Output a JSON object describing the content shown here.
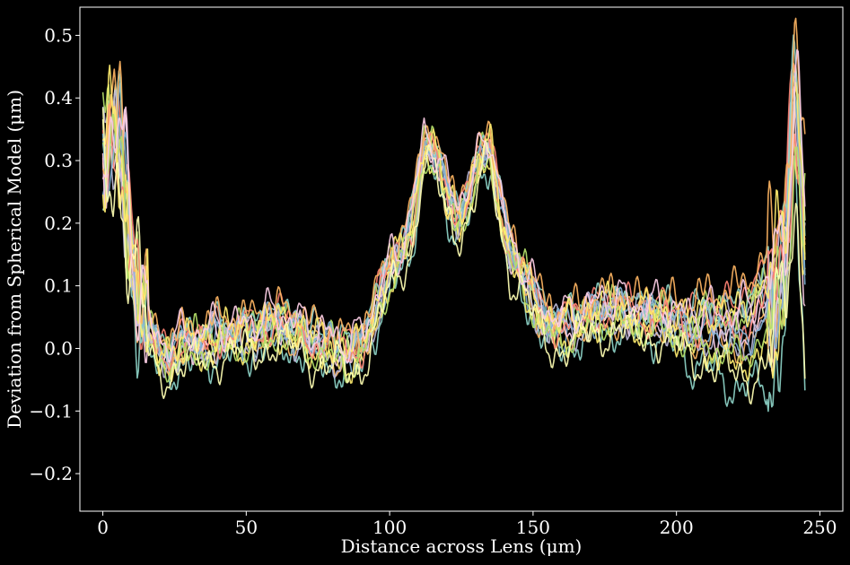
{
  "chart_data": {
    "type": "line",
    "title": "",
    "xlabel": "Distance across Lens (μm)",
    "ylabel": "Deviation from Spherical Model (μm)",
    "xlim": [
      -8,
      258
    ],
    "ylim": [
      -0.26,
      0.545
    ],
    "xticks": [
      0,
      50,
      100,
      150,
      200,
      250
    ],
    "yticks": [
      -0.2,
      -0.1,
      0.0,
      0.1,
      0.2,
      0.3,
      0.4,
      0.5
    ],
    "xtick_labels": [
      "0",
      "50",
      "100",
      "150",
      "200",
      "250"
    ],
    "ytick_labels": [
      "−0.2",
      "−0.1",
      "0.0",
      "0.1",
      "0.2",
      "0.3",
      "0.4",
      "0.5"
    ],
    "background": "#000000",
    "grid": false,
    "legend": "none",
    "profile": {
      "x": [
        0,
        2,
        4,
        6,
        8,
        10,
        12,
        14,
        16,
        18,
        20,
        25,
        30,
        35,
        40,
        45,
        50,
        55,
        60,
        65,
        70,
        75,
        80,
        85,
        90,
        95,
        100,
        104,
        108,
        112,
        116,
        120,
        124,
        128,
        132,
        135,
        138,
        142,
        146,
        150,
        155,
        160,
        165,
        170,
        175,
        180,
        185,
        190,
        195,
        200,
        205,
        210,
        215,
        220,
        225,
        230,
        234,
        237,
        239,
        241,
        243,
        245
      ],
      "y": [
        0.3,
        0.32,
        0.34,
        0.31,
        0.25,
        0.18,
        0.12,
        0.06,
        0.02,
        0.0,
        -0.01,
        0.0,
        0.0,
        0.01,
        0.02,
        0.02,
        0.02,
        0.03,
        0.04,
        0.03,
        0.02,
        0.01,
        0.0,
        -0.01,
        0.0,
        0.06,
        0.12,
        0.15,
        0.2,
        0.33,
        0.3,
        0.24,
        0.22,
        0.24,
        0.3,
        0.33,
        0.24,
        0.15,
        0.12,
        0.08,
        0.04,
        0.03,
        0.04,
        0.05,
        0.06,
        0.06,
        0.05,
        0.05,
        0.05,
        0.04,
        0.03,
        0.04,
        0.03,
        0.03,
        0.04,
        0.06,
        0.08,
        0.15,
        0.25,
        0.35,
        0.3,
        0.15
      ]
    },
    "series": [
      {
        "color": "#8dd3c7",
        "offset": -0.03,
        "trend": -0.35,
        "seed": 1
      },
      {
        "color": "#ffffb3",
        "offset": 0.0,
        "trend": 0.05,
        "seed": 2
      },
      {
        "color": "#bebada",
        "offset": 0.01,
        "trend": 0.1,
        "seed": 3
      },
      {
        "color": "#fb8072",
        "offset": 0.02,
        "trend": 0.15,
        "seed": 4
      },
      {
        "color": "#80b1d3",
        "offset": 0.0,
        "trend": 0.0,
        "seed": 5
      },
      {
        "color": "#fdb462",
        "offset": -0.01,
        "trend": -0.1,
        "seed": 6
      },
      {
        "color": "#b3de69",
        "offset": 0.01,
        "trend": 0.08,
        "seed": 7
      },
      {
        "color": "#fccde5",
        "offset": 0.0,
        "trend": -0.05,
        "seed": 8
      },
      {
        "color": "#8dd3c7",
        "offset": 0.02,
        "trend": 0.12,
        "seed": 9
      },
      {
        "color": "#ffed6f",
        "offset": -0.02,
        "trend": -0.2,
        "seed": 10
      },
      {
        "color": "#bebada",
        "offset": -0.01,
        "trend": -0.08,
        "seed": 11
      },
      {
        "color": "#fb8072",
        "offset": 0.0,
        "trend": 0.02,
        "seed": 12
      },
      {
        "color": "#80b1d3",
        "offset": 0.01,
        "trend": -0.15,
        "seed": 13
      },
      {
        "color": "#fdb462",
        "offset": 0.03,
        "trend": 0.2,
        "seed": 14
      },
      {
        "color": "#b3de69",
        "offset": -0.02,
        "trend": -0.12,
        "seed": 15
      },
      {
        "color": "#ffed6f",
        "offset": 0.01,
        "trend": 0.1,
        "seed": 16
      },
      {
        "color": "#ffffb3",
        "offset": -0.03,
        "trend": -0.25,
        "seed": 17
      },
      {
        "color": "#fccde5",
        "offset": 0.02,
        "trend": 0.05,
        "seed": 18
      }
    ]
  }
}
